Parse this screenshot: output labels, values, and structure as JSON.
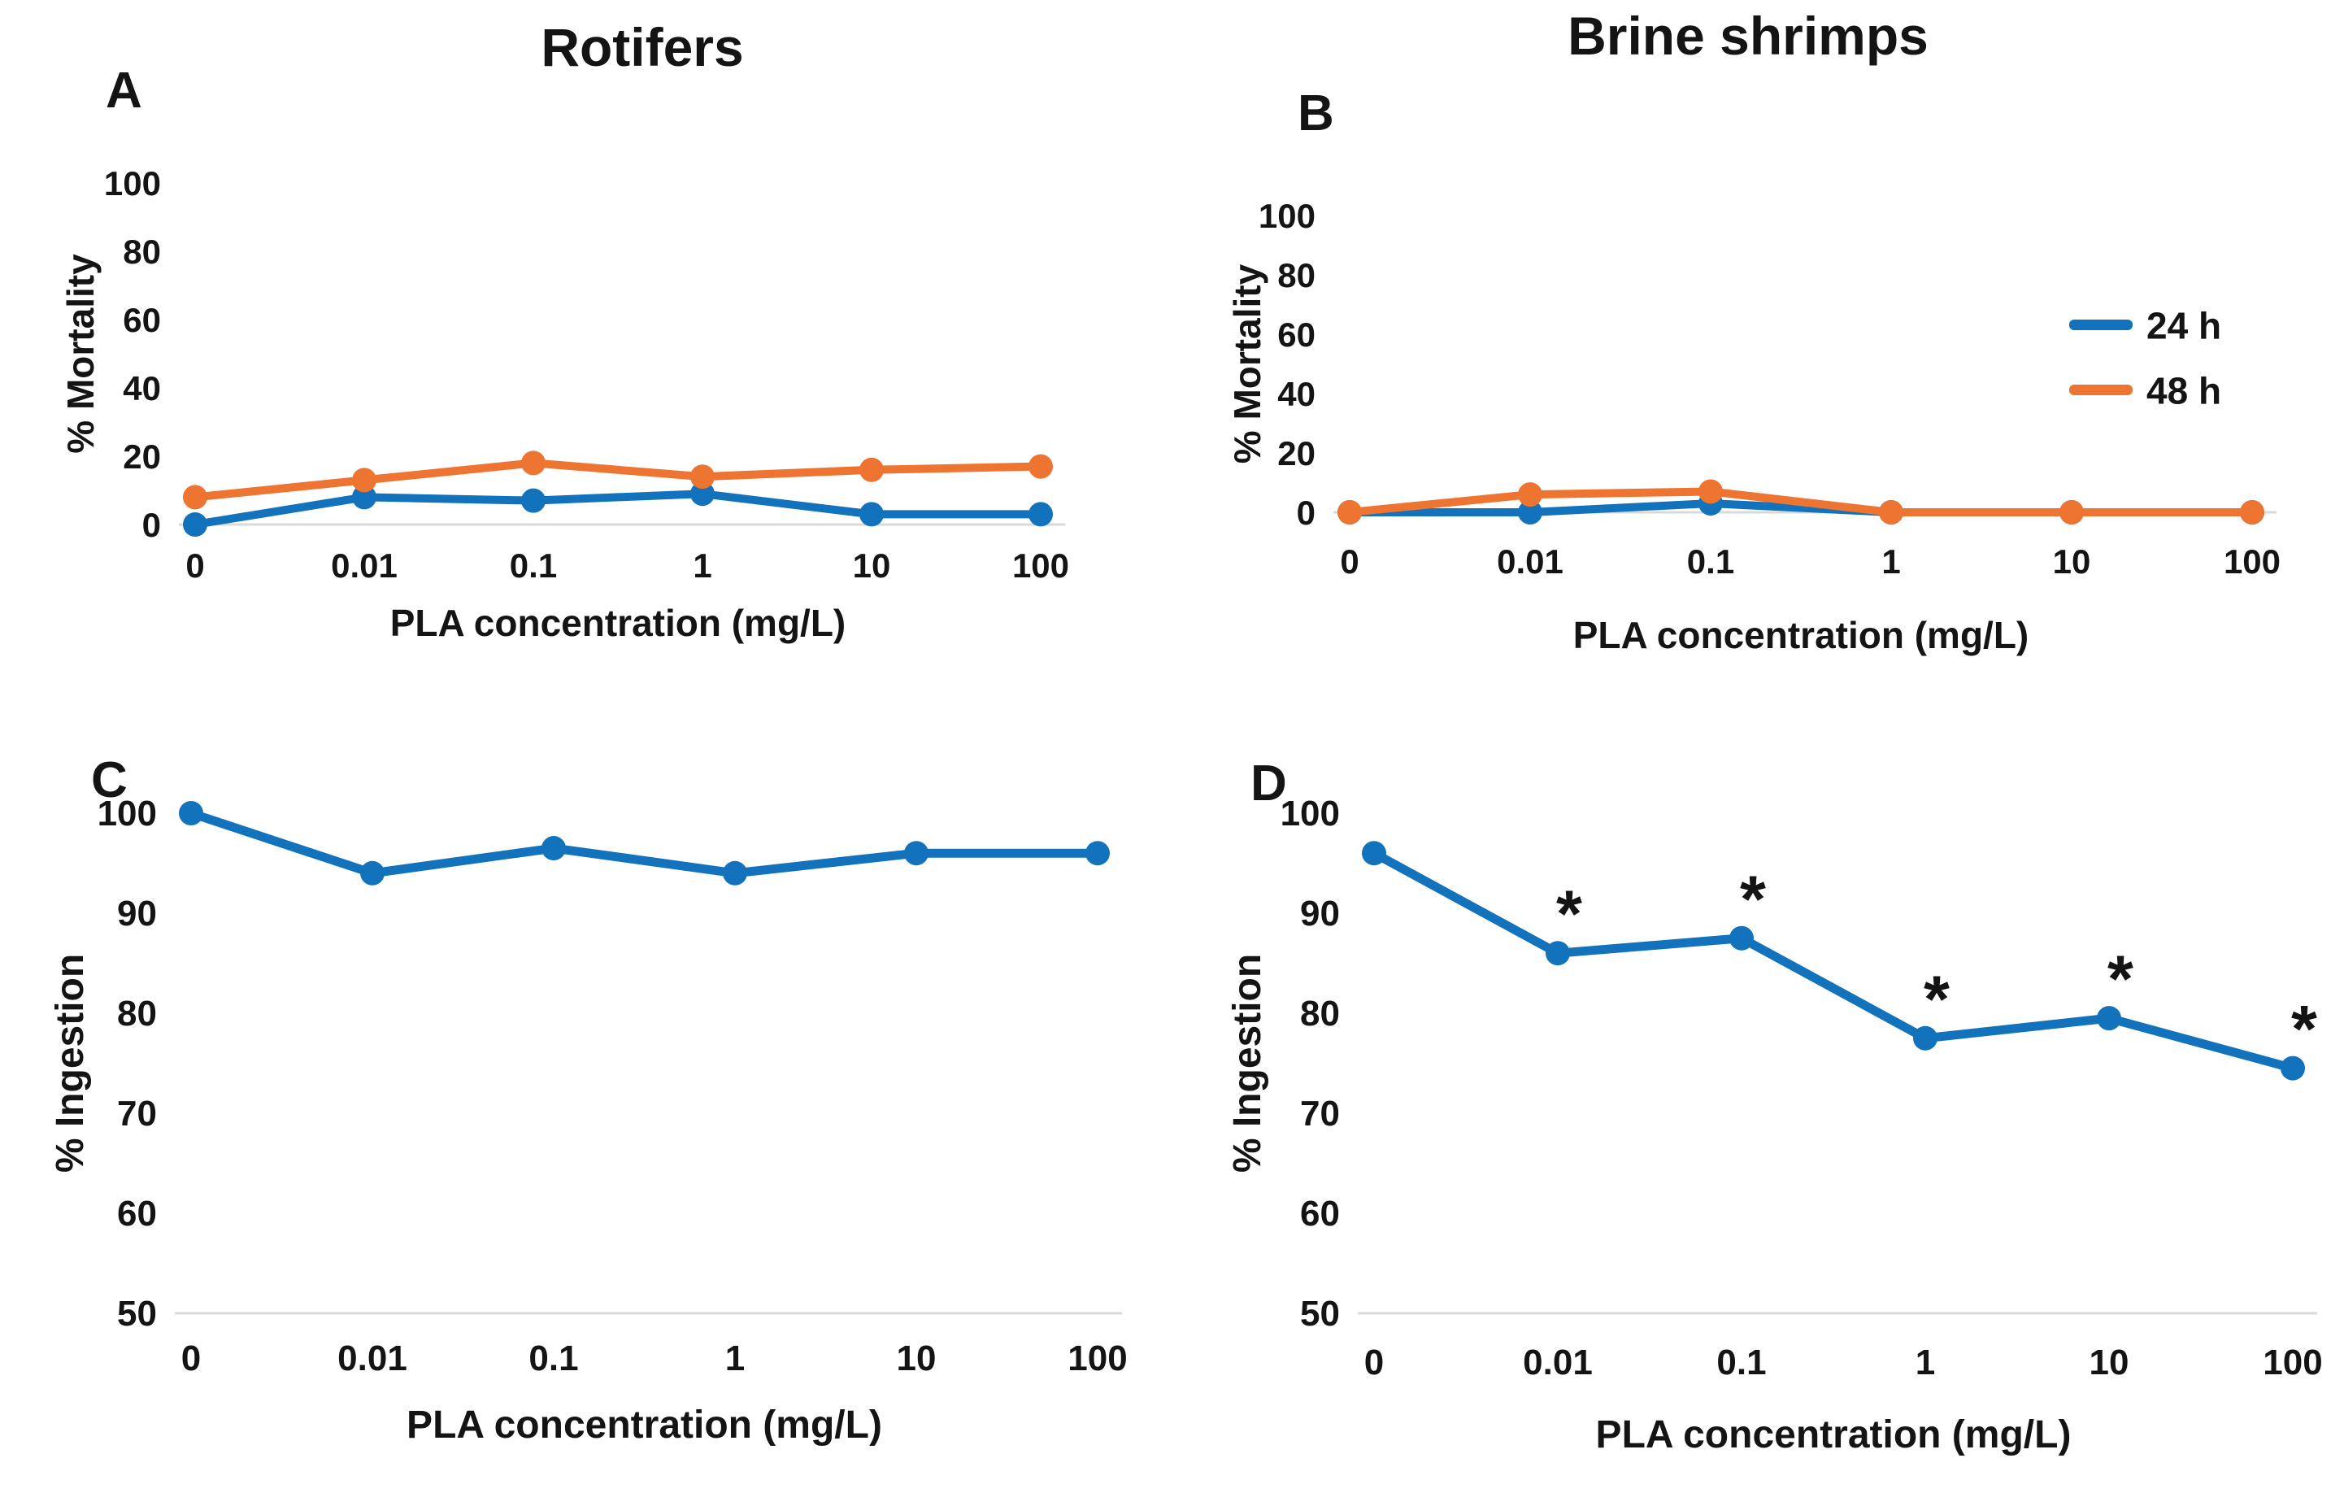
{
  "figure": {
    "background": "#FFFFFF",
    "text_color": "#141414",
    "columns": [
      {
        "title": "Rotifers"
      },
      {
        "title": "Brine shrimps"
      }
    ],
    "colors": {
      "blue": "#1272BC",
      "orange": "#ED7431",
      "baseline": "#D9D9D9"
    },
    "legend": {
      "items": [
        {
          "label": "24 h",
          "color": "blue"
        },
        {
          "label": "48 h",
          "color": "orange"
        }
      ]
    }
  },
  "chart_data": [
    {
      "panel_label": "A",
      "type": "line",
      "organism": "Rotifers",
      "xlabel": "PLA concentration (mg/L)",
      "ylabel": "% Mortality",
      "categories": [
        "0",
        "0.01",
        "0.1",
        "1",
        "10",
        "100"
      ],
      "yticks": [
        0,
        20,
        40,
        60,
        80,
        100
      ],
      "ylim": [
        0,
        100
      ],
      "grid": "baseline-only",
      "series": [
        {
          "name": "24 h",
          "color": "blue",
          "values": [
            0,
            8,
            7,
            9,
            3,
            3
          ]
        },
        {
          "name": "48 h",
          "color": "orange",
          "values": [
            8,
            13,
            18,
            14,
            16,
            17
          ]
        }
      ]
    },
    {
      "panel_label": "B",
      "type": "line",
      "organism": "Brine shrimps",
      "xlabel": "PLA concentration (mg/L)",
      "ylabel": "% Mortality",
      "categories": [
        "0",
        "0.01",
        "0.1",
        "1",
        "10",
        "100"
      ],
      "yticks": [
        0,
        20,
        40,
        60,
        80,
        100
      ],
      "ylim": [
        0,
        100
      ],
      "grid": "baseline-only",
      "legend": "right-middle",
      "series": [
        {
          "name": "24 h",
          "color": "blue",
          "values": [
            0,
            0,
            3,
            0,
            0,
            0
          ]
        },
        {
          "name": "48 h",
          "color": "orange",
          "values": [
            0,
            6,
            7,
            0,
            0,
            0
          ]
        }
      ]
    },
    {
      "panel_label": "C",
      "type": "line",
      "organism": "Rotifers",
      "xlabel": "PLA concentration (mg/L)",
      "ylabel": "% Ingestion",
      "categories": [
        "0",
        "0.01",
        "0.1",
        "1",
        "10",
        "100"
      ],
      "yticks": [
        50,
        60,
        70,
        80,
        90,
        100
      ],
      "ylim": [
        50,
        100
      ],
      "grid": "baseline-only",
      "series": [
        {
          "name": "Ingestion",
          "color": "blue",
          "values": [
            100,
            94,
            96.5,
            94,
            96,
            96
          ]
        }
      ]
    },
    {
      "panel_label": "D",
      "type": "line",
      "organism": "Brine shrimps",
      "xlabel": "PLA concentration (mg/L)",
      "ylabel": "% Ingestion",
      "categories": [
        "0",
        "0.01",
        "0.1",
        "1",
        "10",
        "100"
      ],
      "yticks": [
        50,
        60,
        70,
        80,
        90,
        100
      ],
      "ylim": [
        50,
        100
      ],
      "grid": "baseline-only",
      "annotation_symbol": "*",
      "asterisk_indices": [
        1,
        2,
        3,
        4,
        5
      ],
      "series": [
        {
          "name": "Ingestion",
          "color": "blue",
          "values": [
            96,
            86,
            87.5,
            77.5,
            79.5,
            74.5
          ]
        }
      ]
    }
  ]
}
